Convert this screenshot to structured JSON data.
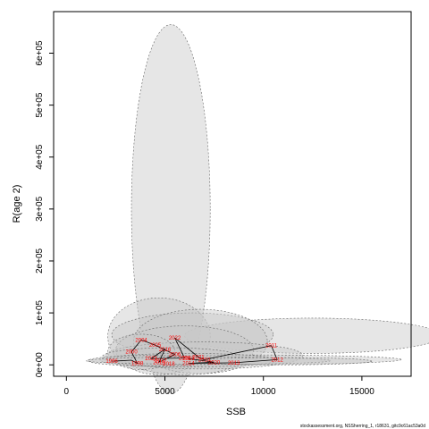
{
  "chart_data": {
    "type": "scatter",
    "title": "",
    "xlabel": "SSB",
    "ylabel": "R(age 2)",
    "xlim": [
      -650,
      17500
    ],
    "ylim": [
      -22000,
      680000
    ],
    "x_ticks": [
      0,
      5000,
      10000,
      15000
    ],
    "x_tick_labels": [
      "0",
      "5000",
      "10000",
      "15000"
    ],
    "y_ticks": [
      0,
      100000,
      200000,
      300000,
      400000,
      500000,
      600000
    ],
    "y_tick_labels": [
      "0e+00",
      "1e+05",
      "2e+05",
      "3e+05",
      "4e+05",
      "5e+05",
      "6e+05"
    ],
    "grid": false,
    "legend": "none",
    "footer": "stockassessment.org, NSSherring_1, r18631, gitc9c61ac53a0d",
    "colors": {
      "ellipse_fill": "#c8c8c8",
      "ellipse_stroke": "#666666",
      "trajectory_line": "#000000",
      "year_label": "#ff0000",
      "axis": "#000000"
    },
    "ellipses": [
      {
        "cx": 5300,
        "cy": 300000,
        "rx": 2000,
        "ry": 355000
      },
      {
        "cx": 12500,
        "cy": 56000,
        "rx": 6500,
        "ry": 34000
      },
      {
        "cx": 4700,
        "cy": 55000,
        "rx": 2600,
        "ry": 74000
      },
      {
        "cx": 6400,
        "cy": 58000,
        "rx": 4100,
        "ry": 42000
      },
      {
        "cx": 6800,
        "cy": 45000,
        "rx": 3400,
        "ry": 62000
      },
      {
        "cx": 6000,
        "cy": 28000,
        "rx": 3500,
        "ry": 47000
      },
      {
        "cx": 7000,
        "cy": 18000,
        "rx": 5000,
        "ry": 26000
      },
      {
        "cx": 3800,
        "cy": 25000,
        "rx": 1700,
        "ry": 34000
      },
      {
        "cx": 5300,
        "cy": 15000,
        "rx": 3500,
        "ry": 18000
      },
      {
        "cx": 9500,
        "cy": 10000,
        "rx": 7500,
        "ry": 9000
      },
      {
        "cx": 6200,
        "cy": 9000,
        "rx": 4500,
        "ry": 13000
      },
      {
        "cx": 4200,
        "cy": 8000,
        "rx": 3100,
        "ry": 10000
      },
      {
        "cx": 7200,
        "cy": 8000,
        "rx": 6200,
        "ry": 7000
      },
      {
        "cx": 11000,
        "cy": 7000,
        "rx": 4500,
        "ry": 7000
      }
    ],
    "points": [
      {
        "label": "1996",
        "x": 2300,
        "y": 7000
      },
      {
        "label": "1998",
        "x": 3600,
        "y": 3000
      },
      {
        "label": "2000",
        "x": 3300,
        "y": 25000
      },
      {
        "label": "2004",
        "x": 3800,
        "y": 48000
      },
      {
        "label": "2005",
        "x": 4500,
        "y": 38000
      },
      {
        "label": "2006",
        "x": 5500,
        "y": 20000
      },
      {
        "label": "2008",
        "x": 6000,
        "y": 13000
      },
      {
        "label": "2010",
        "x": 7000,
        "y": 10000
      },
      {
        "label": "2011",
        "x": 10400,
        "y": 37000
      },
      {
        "label": "2012",
        "x": 10700,
        "y": 10000
      },
      {
        "label": "2013",
        "x": 8500,
        "y": 4000
      },
      {
        "label": "2014",
        "x": 6200,
        "y": 3000
      },
      {
        "label": "2015",
        "x": 4700,
        "y": 5000
      },
      {
        "label": "2016",
        "x": 5000,
        "y": 30000
      },
      {
        "label": "2017",
        "x": 4800,
        "y": 8000
      },
      {
        "label": "2018",
        "x": 5200,
        "y": 2000
      },
      {
        "label": "2019",
        "x": 6200,
        "y": 12000
      },
      {
        "label": "2020",
        "x": 7500,
        "y": 5000
      },
      {
        "label": "2021",
        "x": 6700,
        "y": 15000
      },
      {
        "label": "2022",
        "x": 5500,
        "y": 52000
      },
      {
        "label": "2023",
        "x": 4300,
        "y": 12000
      }
    ],
    "trajectory": [
      [
        2300,
        7000
      ],
      [
        3300,
        9000
      ],
      [
        3600,
        3000
      ],
      [
        3300,
        25000
      ],
      [
        3800,
        48000
      ],
      [
        4500,
        38000
      ],
      [
        5500,
        20000
      ],
      [
        4700,
        5000
      ],
      [
        5000,
        30000
      ],
      [
        4300,
        12000
      ],
      [
        6000,
        13000
      ],
      [
        5500,
        52000
      ],
      [
        6700,
        15000
      ],
      [
        7000,
        10000
      ],
      [
        10400,
        37000
      ],
      [
        10700,
        10000
      ],
      [
        8500,
        4000
      ],
      [
        6200,
        3000
      ],
      [
        7500,
        5000
      ],
      [
        6200,
        12000
      ]
    ]
  }
}
